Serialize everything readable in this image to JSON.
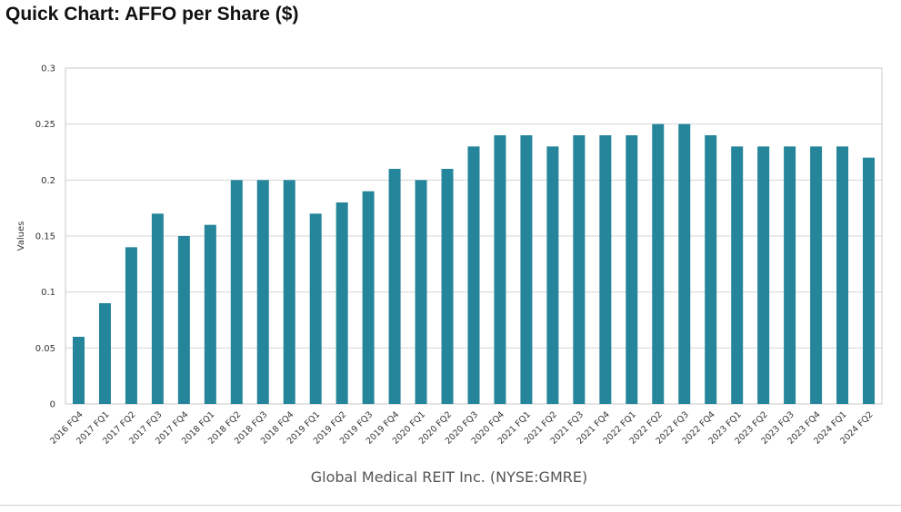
{
  "header": {
    "title": "Quick Chart: AFFO per Share ($)"
  },
  "chart_data": {
    "type": "bar",
    "title": "Quick Chart: AFFO per Share ($)",
    "xlabel": "Global Medical REIT Inc. (NYSE:GMRE)",
    "ylabel": "Values",
    "ylim": [
      0,
      0.3
    ],
    "yticks": [
      "0",
      "0.05",
      "0.1",
      "0.15",
      "0.2",
      "0.25",
      "0.3"
    ],
    "grid": true,
    "bar_color": "#25859a",
    "categories": [
      "2016 FQ4",
      "2017 FQ1",
      "2017 FQ2",
      "2017 FQ3",
      "2017 FQ4",
      "2018 FQ1",
      "2018 FQ2",
      "2018 FQ3",
      "2018 FQ4",
      "2019 FQ1",
      "2019 FQ2",
      "2019 FQ3",
      "2019 FQ4",
      "2020 FQ1",
      "2020 FQ2",
      "2020 FQ3",
      "2020 FQ4",
      "2021 FQ1",
      "2021 FQ2",
      "2021 FQ3",
      "2021 FQ4",
      "2022 FQ1",
      "2022 FQ2",
      "2022 FQ3",
      "2022 FQ4",
      "2023 FQ1",
      "2023 FQ2",
      "2023 FQ3",
      "2023 FQ4",
      "2024 FQ1",
      "2024 FQ2"
    ],
    "values": [
      0.06,
      0.09,
      0.14,
      0.17,
      0.15,
      0.16,
      0.2,
      0.2,
      0.2,
      0.17,
      0.18,
      0.19,
      0.21,
      0.2,
      0.21,
      0.23,
      0.24,
      0.24,
      0.23,
      0.24,
      0.24,
      0.24,
      0.25,
      0.25,
      0.24,
      0.23,
      0.23,
      0.23,
      0.23,
      0.23,
      0.22
    ]
  }
}
